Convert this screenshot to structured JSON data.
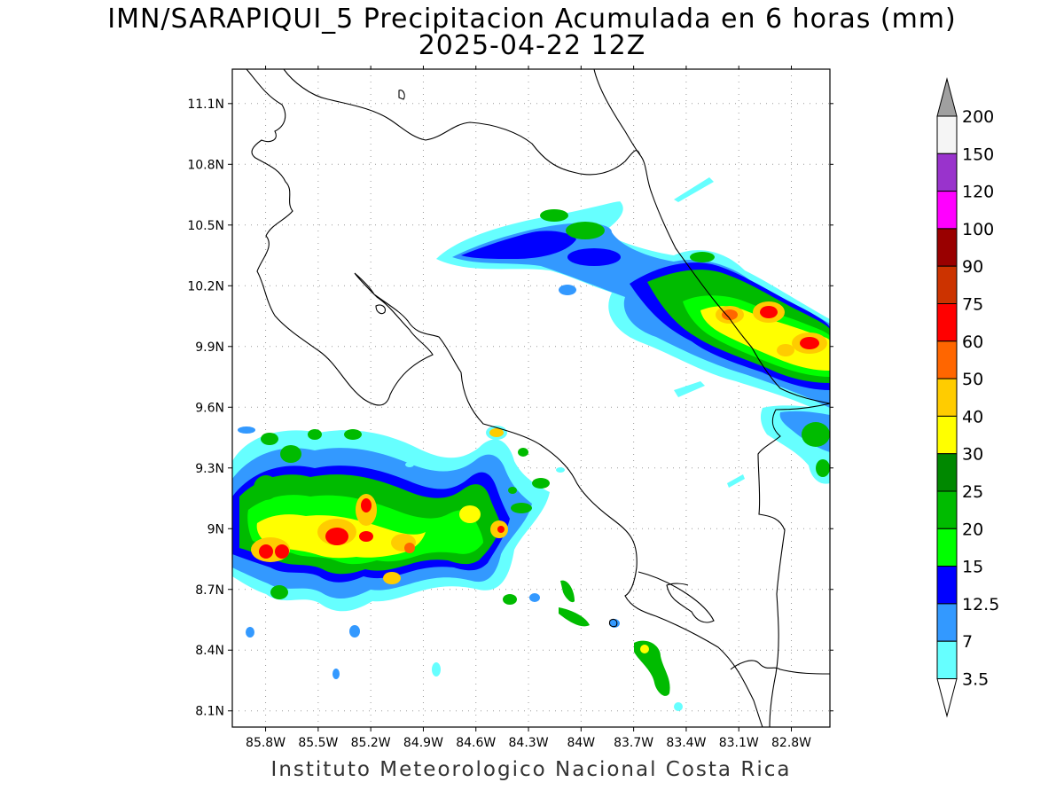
{
  "title_line1": "IMN/SARAPIQUI_5 Precipitacion Acumulada en 6 horas (mm)",
  "title_line2": "2025-04-22 12Z",
  "credit": "Instituto Meteorologico Nacional Costa Rica",
  "axes": {
    "lon_ticks": [
      "85.8W",
      "85.5W",
      "85.2W",
      "84.9W",
      "84.6W",
      "84.3W",
      "84W",
      "83.7W",
      "83.4W",
      "83.1W",
      "82.8W"
    ],
    "lat_ticks": [
      "11.1N",
      "10.8N",
      "10.5N",
      "10.2N",
      "9.9N",
      "9.6N",
      "9.3N",
      "9N",
      "8.7N",
      "8.4N",
      "8.1N"
    ],
    "lon_range": [
      -85.99,
      -82.58
    ],
    "lat_range": [
      8.02,
      11.27
    ],
    "grid": "dotted"
  },
  "colorbar": {
    "labels": [
      "200",
      "150",
      "120",
      "100",
      "90",
      "75",
      "60",
      "50",
      "40",
      "30",
      "25",
      "20",
      "15",
      "12.5",
      "7",
      "3.5"
    ],
    "colors": [
      "#a0a0a0",
      "#f5f5f5",
      "#9933cc",
      "#ff00ff",
      "#990000",
      "#cc3300",
      "#ff0000",
      "#ff6600",
      "#ffcc00",
      "#ffff00",
      "#008800",
      "#00bb00",
      "#00ff00",
      "#0000ff",
      "#3399ff",
      "#66ffff",
      "#ffffff"
    ],
    "units": "mm"
  }
}
